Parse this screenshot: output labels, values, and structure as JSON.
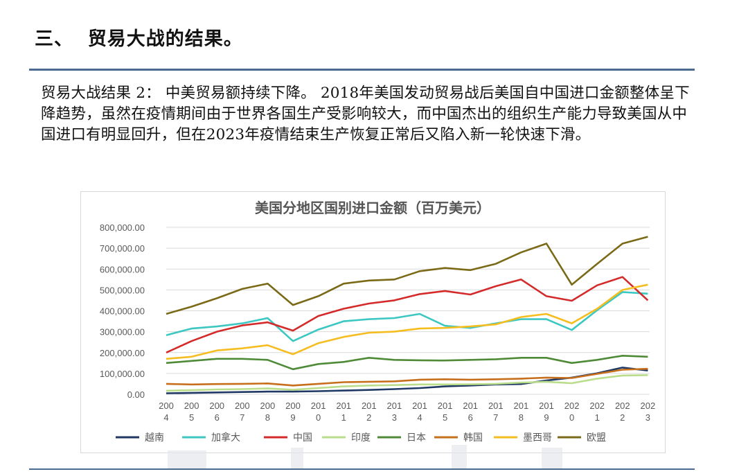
{
  "heading": "三、  贸易大战的结果。",
  "paragraph": "贸易大战结果 2： 中美贸易额持续下降。 2018年美国发动贸易战后美国自中国进口金额整体呈下降趋势，虽然在疫情期间由于世界各国生产受影响较大，而中国杰出的组织生产能力导致美国从中国进口有明显回升，但在2023年疫情结束生产恢复正常后又陷入新一轮快速下滑。",
  "chart_data": {
    "type": "line",
    "title": "美国分地区国别进口金额（百万美元）",
    "x": [
      "2004",
      "2005",
      "2006",
      "2007",
      "2008",
      "2009",
      "2010",
      "2011",
      "2012",
      "2013",
      "2014",
      "2015",
      "2016",
      "2017",
      "2018",
      "2019",
      "2020",
      "2021",
      "2022",
      "2023"
    ],
    "x_tick_labels": [
      [
        "200",
        "4"
      ],
      [
        "200",
        "5"
      ],
      [
        "200",
        "6"
      ],
      [
        "200",
        "7"
      ],
      [
        "200",
        "8"
      ],
      [
        "200",
        "9"
      ],
      [
        "201",
        "0"
      ],
      [
        "201",
        "1"
      ],
      [
        "201",
        "2"
      ],
      [
        "201",
        "3"
      ],
      [
        "201",
        "4"
      ],
      [
        "201",
        "5"
      ],
      [
        "201",
        "6"
      ],
      [
        "201",
        "7"
      ],
      [
        "201",
        "8"
      ],
      [
        "201",
        "9"
      ],
      [
        "202",
        "0"
      ],
      [
        "202",
        "1"
      ],
      [
        "202",
        "2"
      ],
      [
        "202",
        "3"
      ]
    ],
    "y_ticks": [
      "0.00",
      "100,000.00",
      "200,000.00",
      "300,000.00",
      "400,000.00",
      "500,000.00",
      "600,000.00",
      "700,000.00",
      "800,000.00"
    ],
    "ylim": [
      0,
      800000
    ],
    "grid": true,
    "legend_position": "bottom",
    "series": [
      {
        "name": "越南",
        "color": "#1f3864",
        "values": [
          5000,
          7000,
          9000,
          11000,
          13000,
          13000,
          15000,
          18000,
          21000,
          25000,
          30000,
          38000,
          42000,
          47000,
          49000,
          66000,
          80000,
          101000,
          128000,
          114000
        ]
      },
      {
        "name": "加拿大",
        "color": "#3cc7c2",
        "values": [
          283000,
          315000,
          325000,
          340000,
          365000,
          255000,
          310000,
          350000,
          360000,
          365000,
          385000,
          328000,
          318000,
          340000,
          360000,
          360000,
          308000,
          403000,
          490000,
          482000
        ]
      },
      {
        "name": "中国",
        "color": "#d42a2a",
        "values": [
          200000,
          255000,
          300000,
          330000,
          345000,
          305000,
          375000,
          410000,
          435000,
          450000,
          480000,
          495000,
          478000,
          518000,
          550000,
          470000,
          448000,
          522000,
          562000,
          450000
        ]
      },
      {
        "name": "印度",
        "color": "#b9dd8a",
        "values": [
          17000,
          20000,
          23000,
          25000,
          28000,
          22000,
          30000,
          38000,
          42000,
          44000,
          47000,
          47000,
          48000,
          50000,
          56000,
          60000,
          53000,
          75000,
          90000,
          92000
        ]
      },
      {
        "name": "日本",
        "color": "#4f8a37",
        "values": [
          150000,
          160000,
          170000,
          170000,
          165000,
          120000,
          145000,
          155000,
          175000,
          165000,
          163000,
          162000,
          165000,
          168000,
          175000,
          175000,
          150000,
          165000,
          185000,
          180000
        ]
      },
      {
        "name": "韩国",
        "color": "#c66f1c",
        "values": [
          50000,
          47000,
          49000,
          50000,
          52000,
          42000,
          50000,
          58000,
          60000,
          62000,
          70000,
          72000,
          70000,
          72000,
          75000,
          80000,
          78000,
          98000,
          118000,
          122000
        ]
      },
      {
        "name": "墨西哥",
        "color": "#f5bd1f",
        "values": [
          170000,
          180000,
          210000,
          220000,
          235000,
          192000,
          245000,
          275000,
          295000,
          300000,
          315000,
          318000,
          325000,
          335000,
          370000,
          385000,
          340000,
          410000,
          500000,
          525000
        ]
      },
      {
        "name": "欧盟",
        "color": "#7a6a18",
        "values": [
          385000,
          420000,
          460000,
          505000,
          530000,
          428000,
          470000,
          530000,
          545000,
          550000,
          590000,
          605000,
          595000,
          625000,
          680000,
          722000,
          525000,
          625000,
          722000,
          755000
        ]
      }
    ]
  }
}
